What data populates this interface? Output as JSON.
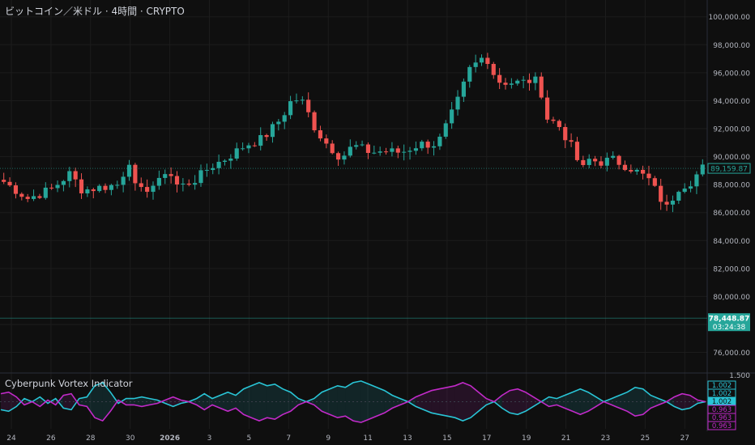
{
  "header": {
    "title": "ビットコイン／米ドル · 4時間 · CRYPTO"
  },
  "indicator": {
    "title": "Cyberpunk Vortex Indicator"
  },
  "colors": {
    "background": "#0f0f0f",
    "grid": "#1c1c1c",
    "up": "#26a69a",
    "down": "#ef5350",
    "vi_plus": "#29c5d6",
    "vi_minus": "#c22ac9",
    "price_line": "#26a69a"
  },
  "chart_data": [
    {
      "type": "candlestick",
      "title": "ビットコイン／米ドル · 4時間 · CRYPTO",
      "x_tick_labels": [
        "24",
        "26",
        "28",
        "30",
        "2026",
        "3",
        "5",
        "7",
        "9",
        "11",
        "13",
        "15",
        "17",
        "19",
        "21",
        "23",
        "25",
        "27"
      ],
      "y_tick_labels": [
        "76,000.00",
        "78,000.00",
        "80,000.00",
        "82,000.00",
        "84,000.00",
        "86,000.00",
        "88,000.00",
        "90,000.00",
        "92,000.00",
        "94,000.00",
        "96,000.00",
        "98,000.00",
        "100,000.00"
      ],
      "ylim": [
        74700,
        101200
      ],
      "close_path": [
        [
          0,
          88200
        ],
        [
          4,
          87000
        ],
        [
          8,
          87700
        ],
        [
          11,
          88800
        ],
        [
          13,
          87600
        ],
        [
          16,
          87800
        ],
        [
          19,
          88000
        ],
        [
          21,
          89900
        ],
        [
          22,
          87300
        ],
        [
          24,
          87800
        ],
        [
          26,
          88200
        ],
        [
          27,
          89200
        ],
        [
          29,
          87800
        ],
        [
          32,
          88400
        ],
        [
          34,
          89200
        ],
        [
          37,
          89900
        ],
        [
          40,
          90800
        ],
        [
          43,
          91300
        ],
        [
          46,
          92700
        ],
        [
          48,
          94200
        ],
        [
          50,
          93800
        ],
        [
          51,
          92500
        ],
        [
          53,
          91200
        ],
        [
          56,
          89900
        ],
        [
          58,
          90800
        ],
        [
          61,
          90300
        ],
        [
          63,
          90400
        ],
        [
          66,
          90300
        ],
        [
          69,
          90900
        ],
        [
          72,
          90900
        ],
        [
          74,
          92700
        ],
        [
          76,
          94600
        ],
        [
          77,
          96100
        ],
        [
          78,
          96500
        ],
        [
          80,
          97300
        ],
        [
          81,
          96200
        ],
        [
          82,
          95400
        ],
        [
          84,
          95300
        ],
        [
          86,
          95300
        ],
        [
          88,
          95500
        ],
        [
          89,
          95100
        ],
        [
          90,
          92800
        ],
        [
          92,
          92300
        ],
        [
          94,
          90900
        ],
        [
          96,
          89000
        ],
        [
          97,
          89800
        ],
        [
          99,
          89600
        ],
        [
          101,
          89800
        ],
        [
          104,
          89200
        ],
        [
          107,
          88400
        ],
        [
          109,
          87000
        ],
        [
          110,
          86300
        ],
        [
          112,
          87800
        ],
        [
          114,
          88200
        ],
        [
          116,
          89200
        ]
      ],
      "price_labels": [
        {
          "value": 89159.87,
          "text": "89,159.87",
          "kind": "last_price"
        },
        {
          "value": 78448.87,
          "text": "78,448.87",
          "kind": "price_line"
        },
        {
          "text": "03:24:38",
          "kind": "countdown"
        }
      ]
    },
    {
      "type": "line",
      "title": "Cyberpunk Vortex Indicator",
      "y_tick_labels": [
        "1.500"
      ],
      "series": [
        {
          "name": "VI+",
          "color": "#29c5d6",
          "values": [
            0.95,
            0.94,
            0.97,
            1.02,
            1.0,
            1.03,
            0.99,
            1.02,
            0.96,
            0.95,
            1.02,
            1.03,
            1.1,
            1.12,
            1.06,
            0.99,
            1.02,
            1.02,
            1.03,
            1.02,
            1.01,
            0.99,
            0.97,
            0.99,
            1.0,
            1.02,
            1.05,
            1.02,
            1.04,
            1.06,
            1.04,
            1.08,
            1.1,
            1.12,
            1.1,
            1.11,
            1.08,
            1.06,
            1.02,
            1.0,
            1.02,
            1.06,
            1.08,
            1.1,
            1.09,
            1.12,
            1.13,
            1.11,
            1.09,
            1.07,
            1.04,
            1.02,
            1.0,
            0.97,
            0.95,
            0.93,
            0.92,
            0.91,
            0.9,
            0.88,
            0.9,
            0.94,
            0.98,
            1.0,
            0.96,
            0.93,
            0.92,
            0.94,
            0.97,
            1.0,
            1.03,
            1.02,
            1.04,
            1.06,
            1.08,
            1.06,
            1.03,
            1.0,
            1.02,
            1.04,
            1.06,
            1.09,
            1.08,
            1.04,
            1.02,
            1.0,
            0.97,
            0.95,
            0.96,
            0.99,
            1.0
          ]
        },
        {
          "name": "VI-",
          "color": "#c22ac9",
          "values": [
            1.05,
            1.06,
            1.03,
            0.98,
            1.0,
            0.97,
            1.01,
            0.98,
            1.04,
            1.05,
            0.98,
            0.97,
            0.9,
            0.88,
            0.94,
            1.01,
            0.98,
            0.98,
            0.97,
            0.98,
            0.99,
            1.01,
            1.03,
            1.01,
            1.0,
            0.98,
            0.95,
            0.98,
            0.96,
            0.94,
            0.96,
            0.92,
            0.9,
            0.88,
            0.9,
            0.89,
            0.92,
            0.94,
            0.98,
            1.0,
            0.98,
            0.94,
            0.92,
            0.9,
            0.91,
            0.88,
            0.87,
            0.89,
            0.91,
            0.93,
            0.96,
            0.98,
            1.0,
            1.03,
            1.05,
            1.07,
            1.08,
            1.09,
            1.1,
            1.12,
            1.1,
            1.06,
            1.02,
            1.0,
            1.04,
            1.07,
            1.08,
            1.06,
            1.03,
            1.0,
            0.97,
            0.98,
            0.96,
            0.94,
            0.92,
            0.94,
            0.97,
            1.0,
            0.98,
            0.96,
            0.94,
            0.91,
            0.92,
            0.96,
            0.98,
            1.0,
            1.03,
            1.05,
            1.04,
            1.01,
            1.0
          ]
        }
      ],
      "value_labels": [
        {
          "text": "1.002",
          "color": "#29c5d6"
        },
        {
          "text": "1.002",
          "color": "#29c5d6"
        },
        {
          "text": "1.002",
          "color": "#29c5d6"
        },
        {
          "text": "0.963",
          "color": "#c22ac9"
        },
        {
          "text": "0.963",
          "color": "#c22ac9"
        },
        {
          "text": "0.963",
          "color": "#c22ac9"
        }
      ]
    }
  ]
}
